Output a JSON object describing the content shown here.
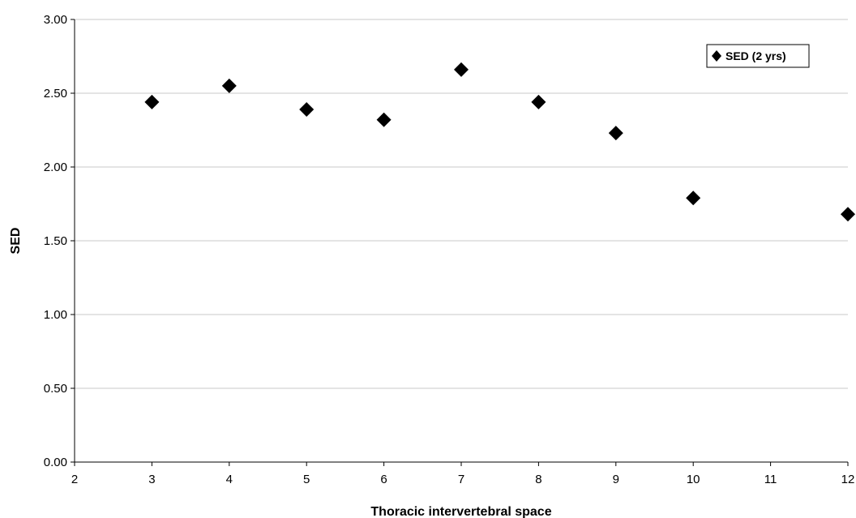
{
  "chart_data": {
    "type": "scatter",
    "xlabel": "Thoracic intervertebral space",
    "ylabel": "SED",
    "xlim": [
      2,
      12
    ],
    "ylim": [
      0,
      3
    ],
    "x_ticks": [
      "2",
      "3",
      "4",
      "5",
      "6",
      "7",
      "8",
      "9",
      "10",
      "11",
      "12"
    ],
    "y_ticks": [
      "0.00",
      "0.50",
      "1.00",
      "1.50",
      "2.00",
      "2.50",
      "3.00"
    ],
    "grid": true,
    "legend_position": "top-right",
    "marker": "diamond",
    "colors": {
      "marker": "#000000",
      "grid": "#c8c8c8",
      "axis": "#000000",
      "background": "#ffffff"
    },
    "series": [
      {
        "name": "SED (2 yrs)",
        "x": [
          3,
          4,
          5,
          6,
          7,
          8,
          9,
          10,
          12
        ],
        "y": [
          2.44,
          2.55,
          2.39,
          2.32,
          2.66,
          2.44,
          2.23,
          1.79,
          1.68
        ]
      }
    ]
  }
}
